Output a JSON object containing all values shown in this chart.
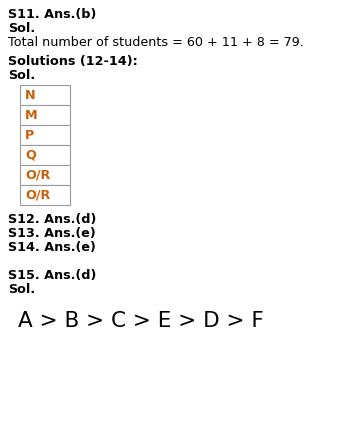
{
  "bg_color": "#ffffff",
  "line1_bold": "S11. Ans.(b)",
  "line2_bold": "Sol.",
  "line3_normal": "Total number of students = 60 + 11 + 8 = 79.",
  "line4_bold": "Solutions (12-14):",
  "line5_bold": "Sol.",
  "table_items": [
    "N",
    "M",
    "P",
    "Q",
    "O/R",
    "O/R"
  ],
  "table_item_color": "#c8620a",
  "line6_bold": "S12. Ans.(d)",
  "line7_bold": "S13. Ans.(e)",
  "line8_bold": "S14. Ans.(e)",
  "line9_bold": "S15. Ans.(d)",
  "line10_bold": "Sol.",
  "bottom_text": "A > B > C > E > D > F",
  "text_color": "#000000",
  "table_border_color": "#999999",
  "figw": 3.64,
  "figh": 4.25,
  "dpi": 100
}
